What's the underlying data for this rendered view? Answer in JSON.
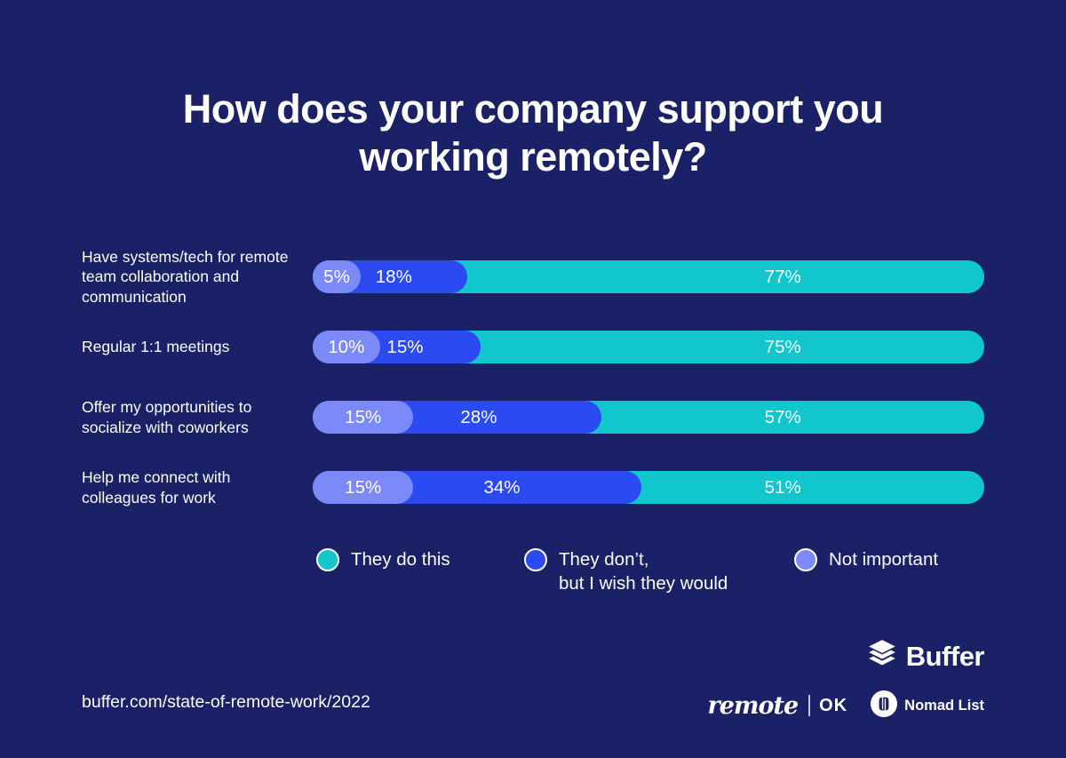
{
  "title": "How does your company support you\nworking remotely?",
  "colors": {
    "background": "#1A2166",
    "teal": "#12C6CE",
    "blue": "#2C4AF2",
    "periwinkle": "#7B8AF8",
    "text": "#FFFFFF"
  },
  "chart_data": {
    "type": "bar",
    "orientation": "horizontal",
    "stacked": true,
    "units": "percent",
    "xlim": [
      0,
      100
    ],
    "title": "How does your company support you working remotely?",
    "categories": [
      "Have systems/tech for remote team collaboration and communication",
      "Regular 1:1 meetings",
      "Offer my opportunities to socialize with coworkers",
      "Help me connect with colleagues for work"
    ],
    "series": [
      {
        "name": "Not important",
        "color": "#7B8AF8",
        "values": [
          5,
          10,
          15,
          15
        ]
      },
      {
        "name": "They don’t, but I wish they would",
        "color": "#2C4AF2",
        "values": [
          18,
          15,
          28,
          34
        ]
      },
      {
        "name": "They do this",
        "color": "#12C6CE",
        "values": [
          77,
          75,
          57,
          51
        ]
      }
    ],
    "rows": [
      {
        "label": "Have systems/tech for remote team collaboration and communication",
        "not_important": 5,
        "they_dont": 18,
        "they_do": 77,
        "display": {
          "not_important": "5%",
          "they_dont": "18%",
          "they_do": "77%"
        }
      },
      {
        "label": "Regular 1:1 meetings",
        "not_important": 10,
        "they_dont": 15,
        "they_do": 75,
        "display": {
          "not_important": "10%",
          "they_dont": "15%",
          "they_do": "75%"
        }
      },
      {
        "label": "Offer my opportunities to socialize with coworkers",
        "not_important": 15,
        "they_dont": 28,
        "they_do": 57,
        "display": {
          "not_important": "15%",
          "they_dont": "28%",
          "they_do": "57%"
        }
      },
      {
        "label": "Help me connect with colleagues for work",
        "not_important": 15,
        "they_dont": 34,
        "they_do": 51,
        "display": {
          "not_important": "15%",
          "they_dont": "34%",
          "they_do": "51%"
        }
      }
    ],
    "legend_position": "bottom"
  },
  "legend": [
    {
      "label": "They do this",
      "color_key": "teal"
    },
    {
      "label": "They don’t,\nbut I wish they would",
      "color_key": "blue"
    },
    {
      "label": "Not important",
      "color_key": "periwinkle"
    }
  ],
  "footer": {
    "source_url": "buffer.com/state-of-remote-work/2022",
    "buffer_wordmark": "Buffer",
    "remote_script": "remote",
    "remote_ok": "OK",
    "nomad_list": "Nomad List"
  }
}
